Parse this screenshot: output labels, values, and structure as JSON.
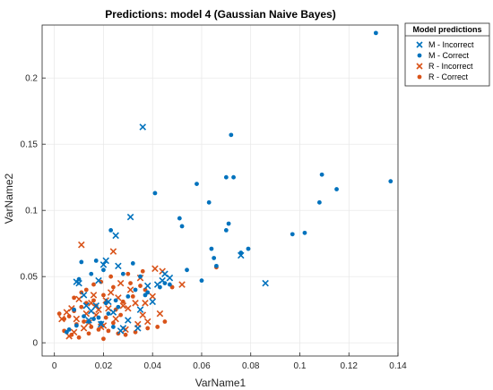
{
  "chart_data": {
    "type": "scatter",
    "title": "Predictions: model 4 (Gaussian Naive Bayes)",
    "xlabel": "VarName1",
    "ylabel": "VarName2",
    "xlim": [
      -0.005,
      0.14
    ],
    "ylim": [
      -0.01,
      0.24
    ],
    "xticks": [
      "0",
      "0.02",
      "0.04",
      "0.06",
      "0.08",
      "0.1",
      "0.12",
      "0.14"
    ],
    "xtick_values": [
      0,
      0.02,
      0.04,
      0.06,
      0.08,
      0.1,
      0.12,
      0.14
    ],
    "yticks": [
      "0",
      "0.05",
      "0.1",
      "0.15",
      "0.2"
    ],
    "ytick_values": [
      0,
      0.05,
      0.1,
      0.15,
      0.2
    ],
    "grid": true,
    "legend": {
      "title": "Model predictions",
      "placement": "outside-top-right"
    },
    "series": [
      {
        "name": "M - Incorrect",
        "marker": "x",
        "color": "#0072BD",
        "x": [
          0.036,
          0.031,
          0.025,
          0.076,
          0.086,
          0.047,
          0.044,
          0.038,
          0.021,
          0.018,
          0.026,
          0.035,
          0.028,
          0.015,
          0.012,
          0.01,
          0.022,
          0.034,
          0.017,
          0.03,
          0.024,
          0.019,
          0.045,
          0.04,
          0.013,
          0.027,
          0.014,
          0.009,
          0.042,
          0.02
        ],
        "y": [
          0.163,
          0.095,
          0.081,
          0.066,
          0.045,
          0.049,
          0.047,
          0.043,
          0.062,
          0.047,
          0.058,
          0.025,
          0.011,
          0.024,
          0.036,
          0.045,
          0.031,
          0.011,
          0.028,
          0.017,
          0.023,
          0.014,
          0.052,
          0.031,
          0.028,
          0.009,
          0.017,
          0.046,
          0.044,
          0.059
        ]
      },
      {
        "name": "M - Correct",
        "marker": "dot",
        "color": "#0072BD",
        "x": [
          0.131,
          0.137,
          0.072,
          0.109,
          0.115,
          0.058,
          0.07,
          0.073,
          0.041,
          0.108,
          0.051,
          0.052,
          0.063,
          0.071,
          0.07,
          0.102,
          0.097,
          0.079,
          0.064,
          0.076,
          0.065,
          0.054,
          0.06,
          0.066,
          0.023,
          0.017,
          0.032,
          0.028,
          0.011,
          0.01,
          0.015,
          0.02,
          0.035,
          0.045,
          0.047,
          0.037,
          0.03,
          0.025,
          0.021,
          0.008,
          0.005,
          0.012,
          0.016,
          0.019,
          0.024,
          0.033,
          0.038,
          0.043,
          0.026,
          0.022,
          0.018,
          0.014,
          0.009,
          0.006
        ],
        "y": [
          0.234,
          0.122,
          0.157,
          0.127,
          0.116,
          0.12,
          0.125,
          0.125,
          0.113,
          0.106,
          0.094,
          0.088,
          0.106,
          0.09,
          0.085,
          0.083,
          0.082,
          0.071,
          0.071,
          0.068,
          0.064,
          0.055,
          0.047,
          0.058,
          0.085,
          0.062,
          0.06,
          0.052,
          0.061,
          0.048,
          0.052,
          0.055,
          0.05,
          0.045,
          0.044,
          0.036,
          0.035,
          0.032,
          0.03,
          0.025,
          0.008,
          0.02,
          0.018,
          0.015,
          0.012,
          0.04,
          0.038,
          0.042,
          0.027,
          0.022,
          0.019,
          0.016,
          0.013,
          0.01
        ]
      },
      {
        "name": "R - Incorrect",
        "marker": "x",
        "color": "#D95319",
        "x": [
          0.011,
          0.024,
          0.041,
          0.044,
          0.052,
          0.035,
          0.04,
          0.033,
          0.028,
          0.022,
          0.018,
          0.015,
          0.013,
          0.009,
          0.007,
          0.005,
          0.003,
          0.01,
          0.016,
          0.021,
          0.026,
          0.03,
          0.036,
          0.038,
          0.043,
          0.012,
          0.008,
          0.014,
          0.019,
          0.025,
          0.029,
          0.034,
          0.006,
          0.017,
          0.023,
          0.031,
          0.027,
          0.02,
          0.037
        ],
        "y": [
          0.074,
          0.069,
          0.056,
          0.054,
          0.044,
          0.049,
          0.035,
          0.03,
          0.028,
          0.026,
          0.025,
          0.03,
          0.022,
          0.018,
          0.026,
          0.023,
          0.018,
          0.033,
          0.036,
          0.032,
          0.034,
          0.026,
          0.021,
          0.016,
          0.022,
          0.011,
          0.008,
          0.015,
          0.012,
          0.018,
          0.01,
          0.014,
          0.005,
          0.021,
          0.038,
          0.04,
          0.045,
          0.013,
          0.03
        ]
      },
      {
        "name": "R - Correct",
        "marker": "dot",
        "color": "#D95319",
        "x": [
          0.066,
          0.048,
          0.031,
          0.037,
          0.024,
          0.02,
          0.016,
          0.013,
          0.011,
          0.008,
          0.006,
          0.004,
          0.002,
          0.009,
          0.012,
          0.015,
          0.018,
          0.022,
          0.026,
          0.029,
          0.033,
          0.038,
          0.042,
          0.045,
          0.027,
          0.017,
          0.007,
          0.01,
          0.014,
          0.021,
          0.025,
          0.028,
          0.032,
          0.035,
          0.019,
          0.023,
          0.03,
          0.036,
          0.004,
          0.013,
          0.016,
          0.011,
          0.008,
          0.02,
          0.024
        ],
        "y": [
          0.057,
          0.042,
          0.045,
          0.04,
          0.042,
          0.036,
          0.032,
          0.03,
          0.027,
          0.024,
          0.02,
          0.018,
          0.022,
          0.014,
          0.016,
          0.012,
          0.01,
          0.009,
          0.007,
          0.006,
          0.008,
          0.011,
          0.012,
          0.016,
          0.021,
          0.028,
          0.006,
          0.004,
          0.007,
          0.019,
          0.025,
          0.031,
          0.035,
          0.043,
          0.046,
          0.05,
          0.052,
          0.054,
          0.009,
          0.04,
          0.044,
          0.038,
          0.034,
          0.003,
          0.015
        ]
      }
    ]
  }
}
